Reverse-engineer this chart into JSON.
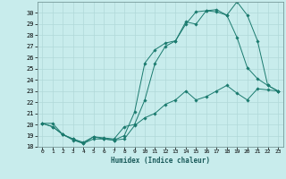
{
  "title": "",
  "xlabel": "Humidex (Indice chaleur)",
  "ylabel": "",
  "background_color": "#c8ecec",
  "grid_color": "#b0d8d8",
  "line_color": "#1a7a6e",
  "xlim": [
    -0.5,
    23.5
  ],
  "ylim": [
    18,
    31
  ],
  "yticks": [
    18,
    19,
    20,
    21,
    22,
    23,
    24,
    25,
    26,
    27,
    28,
    29,
    30
  ],
  "xticks": [
    0,
    1,
    2,
    3,
    4,
    5,
    6,
    7,
    8,
    9,
    10,
    11,
    12,
    13,
    14,
    15,
    16,
    17,
    18,
    19,
    20,
    21,
    22,
    23
  ],
  "line1_x": [
    0,
    1,
    2,
    3,
    4,
    5,
    6,
    7,
    8,
    9,
    10,
    11,
    12,
    13,
    14,
    15,
    16,
    17,
    18,
    19,
    20,
    21,
    22,
    23
  ],
  "line1_y": [
    20.1,
    19.8,
    19.1,
    18.6,
    18.3,
    18.7,
    18.7,
    18.6,
    18.7,
    19.9,
    20.6,
    21.0,
    21.8,
    22.2,
    23.0,
    22.2,
    22.5,
    23.0,
    23.5,
    22.8,
    22.2,
    23.2,
    23.1,
    23.0
  ],
  "line2_x": [
    0,
    1,
    2,
    3,
    4,
    5,
    6,
    7,
    8,
    9,
    10,
    11,
    12,
    13,
    14,
    15,
    16,
    17,
    18,
    19,
    20,
    21,
    22,
    23
  ],
  "line2_y": [
    20.1,
    19.8,
    19.1,
    18.7,
    18.3,
    18.9,
    18.7,
    18.6,
    19.0,
    21.1,
    25.5,
    26.7,
    27.3,
    27.5,
    29.0,
    30.1,
    30.2,
    30.1,
    29.8,
    27.8,
    25.1,
    24.1,
    23.5,
    23.0
  ],
  "line3_x": [
    0,
    1,
    2,
    3,
    4,
    5,
    6,
    7,
    8,
    9,
    10,
    11,
    12,
    13,
    14,
    15,
    16,
    17,
    18,
    19,
    20,
    21,
    22,
    23
  ],
  "line3_y": [
    20.1,
    20.1,
    19.1,
    18.7,
    18.4,
    18.9,
    18.8,
    18.7,
    19.8,
    20.0,
    22.2,
    25.5,
    27.0,
    27.5,
    29.2,
    29.0,
    30.2,
    30.3,
    29.8,
    31.0,
    29.8,
    27.5,
    23.5,
    23.0
  ]
}
